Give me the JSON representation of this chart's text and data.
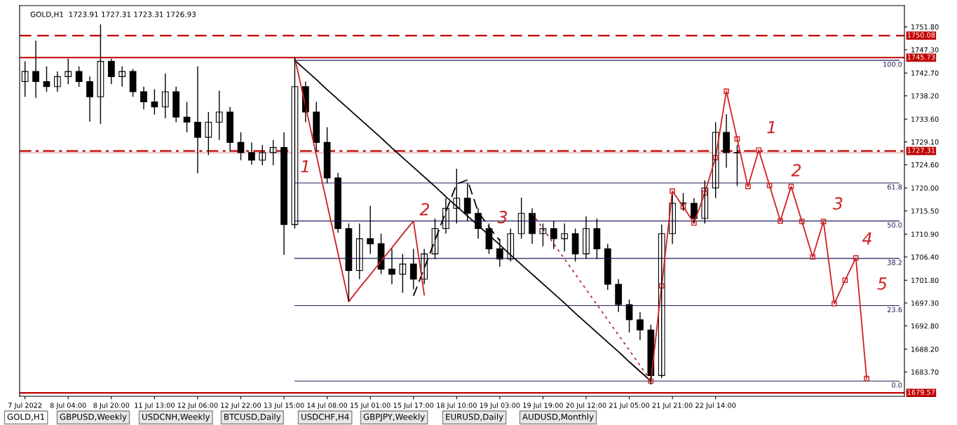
{
  "chart_data": {
    "type": "candlestick",
    "title": "GOLD,H1  1723.91 1727.31 1723.31 1726.93",
    "color": "#000000",
    "categories": [
      "7 Jul 2022",
      null,
      null,
      null,
      "8 Jul 04:00",
      null,
      null,
      null,
      "8 Jul 20:00",
      null,
      null,
      null,
      "11 Jul 13:00",
      null,
      null,
      null,
      "12 Jul 06:00",
      null,
      null,
      null,
      "12 Jul 22:00",
      null,
      null,
      null,
      "13 Jul 15:00",
      null,
      null,
      null,
      "14 Jul 08:00",
      null,
      null,
      null,
      "15 Jul 01:00",
      null,
      null,
      null,
      "15 Jul 17:00",
      null,
      null,
      null,
      "18 Jul 10:00",
      null,
      null,
      null,
      "19 Jul 03:00",
      null,
      null,
      null,
      "19 Jul 19:00",
      null,
      null,
      null,
      "20 Jul 12:00",
      null,
      null,
      null,
      "21 Jul 05:00",
      null,
      null,
      null,
      "21 Jul 21:00",
      null,
      null,
      null,
      "22 Jul 14:00",
      null,
      null,
      null,
      null,
      null,
      null,
      null,
      null,
      null,
      null,
      null,
      null,
      null,
      null,
      null,
      null,
      null
    ],
    "ohlc": [
      [
        1741,
        1745,
        1738,
        1743
      ],
      [
        1743,
        1749.1,
        1737.8,
        1741
      ],
      [
        1741,
        1744,
        1739,
        1740
      ],
      [
        1740,
        1743,
        1739,
        1742
      ],
      [
        1742,
        1745.5,
        1740.5,
        1743
      ],
      [
        1743,
        1744,
        1740,
        1741
      ],
      [
        1741,
        1742,
        1733.1,
        1738
      ],
      [
        1738,
        1752.3,
        1732.6,
        1745
      ],
      [
        1745,
        1745.5,
        1740.5,
        1742
      ],
      [
        1742,
        1744,
        1740,
        1743
      ],
      [
        1743,
        1743.5,
        1738,
        1739
      ],
      [
        1739,
        1740,
        1735.5,
        1737
      ],
      [
        1737,
        1739.5,
        1734.5,
        1736
      ],
      [
        1736,
        1742.6,
        1733.8,
        1739
      ],
      [
        1739,
        1740,
        1733,
        1734
      ],
      [
        1734,
        1737,
        1731,
        1733
      ],
      [
        1733,
        1744,
        1722.9,
        1730
      ],
      [
        1730,
        1735,
        1726.5,
        1733
      ],
      [
        1733,
        1739.2,
        1729.5,
        1735
      ],
      [
        1735,
        1736,
        1727.2,
        1729
      ],
      [
        1729,
        1731,
        1725.5,
        1727
      ],
      [
        1727,
        1729,
        1724.6,
        1725.5
      ],
      [
        1725.5,
        1728.5,
        1724.5,
        1727
      ],
      [
        1727,
        1729.5,
        1724.5,
        1728
      ],
      [
        1728,
        1731,
        1706.8,
        1712.8
      ],
      [
        1712.8,
        1745.9,
        1712,
        1740
      ],
      [
        1740,
        1741,
        1733,
        1735
      ],
      [
        1735,
        1737,
        1727.2,
        1729
      ],
      [
        1729,
        1732,
        1720.9,
        1722
      ],
      [
        1722,
        1723,
        1711.2,
        1712
      ],
      [
        1712,
        1713,
        1697.6,
        1703.7
      ],
      [
        1703.7,
        1713,
        1702,
        1710
      ],
      [
        1710,
        1716.5,
        1707,
        1709
      ],
      [
        1709,
        1711,
        1703,
        1704
      ],
      [
        1704,
        1708,
        1701,
        1703
      ],
      [
        1703,
        1707,
        1699.3,
        1705
      ],
      [
        1705,
        1708,
        1700,
        1702
      ],
      [
        1702,
        1708,
        1701,
        1707
      ],
      [
        1707,
        1714,
        1706,
        1712
      ],
      [
        1712,
        1718,
        1711,
        1716
      ],
      [
        1716,
        1723.8,
        1713,
        1718
      ],
      [
        1718,
        1721,
        1713.5,
        1715
      ],
      [
        1715,
        1716,
        1710,
        1712
      ],
      [
        1712,
        1713,
        1707,
        1708
      ],
      [
        1708,
        1710,
        1704.5,
        1706
      ],
      [
        1706,
        1712,
        1705.5,
        1711
      ],
      [
        1711,
        1718.1,
        1710,
        1715
      ],
      [
        1715,
        1716,
        1709,
        1711
      ],
      [
        1711,
        1713,
        1708.5,
        1712
      ],
      [
        1712,
        1713.5,
        1708,
        1710
      ],
      [
        1710,
        1713,
        1707.5,
        1711
      ],
      [
        1711,
        1712,
        1705.5,
        1707
      ],
      [
        1707,
        1714.4,
        1706,
        1712
      ],
      [
        1712,
        1714,
        1706,
        1708
      ],
      [
        1708,
        1709,
        1699.9,
        1701
      ],
      [
        1701,
        1702,
        1695.5,
        1697
      ],
      [
        1697,
        1698,
        1691.5,
        1694
      ],
      [
        1694,
        1695.5,
        1690,
        1692
      ],
      [
        1692,
        1693,
        1681.2,
        1683
      ],
      [
        1683,
        1712.8,
        1682.5,
        1711
      ],
      [
        1711,
        1718.7,
        1709,
        1717
      ],
      [
        1717,
        1719,
        1715.5,
        1717
      ],
      [
        1717,
        1718,
        1713,
        1714
      ],
      [
        1714,
        1721.5,
        1713,
        1720
      ],
      [
        1720,
        1733,
        1718,
        1731
      ],
      [
        1731,
        1734.6,
        1724,
        1727
      ],
      [
        1727,
        1728.5,
        1720.4,
        1726.93
      ],
      null,
      null,
      null,
      null,
      null,
      null,
      null,
      null,
      null,
      null,
      null,
      null,
      null,
      null,
      null
    ],
    "series": [
      {
        "type": "line",
        "color": "#1f1f5c",
        "line_style": "solid",
        "marker": "none",
        "name": "0.0",
        "values": [
          null,
          null,
          null,
          null,
          null,
          null,
          null,
          null,
          null,
          null,
          null,
          null,
          null,
          null,
          null,
          null,
          null,
          null,
          null,
          null,
          null,
          null,
          null,
          null,
          null,
          1681.9,
          1681.9,
          1681.9,
          1681.9,
          1681.9,
          1681.9,
          1681.9,
          1681.9,
          1681.9,
          1681.9,
          1681.9,
          1681.9,
          1681.9,
          1681.9,
          1681.9,
          1681.9,
          1681.9,
          1681.9,
          1681.9,
          1681.9,
          1681.9,
          1681.9,
          1681.9,
          1681.9,
          1681.9,
          1681.9,
          1681.9,
          1681.9,
          1681.9,
          1681.9,
          1681.9,
          1681.9,
          1681.9,
          1681.9,
          1681.9,
          1681.9,
          1681.9,
          1681.9,
          1681.9,
          1681.9,
          1681.9,
          1681.9,
          1681.9,
          1681.9,
          1681.9,
          1681.9,
          1681.9,
          1681.9,
          1681.9,
          1681.9,
          1681.9,
          1681.9,
          1681.9,
          1681.9,
          1681.9,
          1681.9,
          1681.9
        ]
      },
      {
        "type": "line",
        "color": "#1f1f5c",
        "line_style": "solid",
        "marker": "none",
        "name": "23.6",
        "values": [
          null,
          null,
          null,
          null,
          null,
          null,
          null,
          null,
          null,
          null,
          null,
          null,
          null,
          null,
          null,
          null,
          null,
          null,
          null,
          null,
          null,
          null,
          null,
          null,
          null,
          1696.8,
          1696.8,
          1696.8,
          1696.8,
          1696.8,
          1696.8,
          1696.8,
          1696.8,
          1696.8,
          1696.8,
          1696.8,
          1696.8,
          1696.8,
          1696.8,
          1696.8,
          1696.8,
          1696.8,
          1696.8,
          1696.8,
          1696.8,
          1696.8,
          1696.8,
          1696.8,
          1696.8,
          1696.8,
          1696.8,
          1696.8,
          1696.8,
          1696.8,
          1696.8,
          1696.8,
          1696.8,
          1696.8,
          1696.8,
          1696.8,
          1696.8,
          1696.8,
          1696.8,
          1696.8,
          1696.8,
          1696.8,
          1696.8,
          1696.8,
          1696.8,
          1696.8,
          1696.8,
          1696.8,
          1696.8,
          1696.8,
          1696.8,
          1696.8,
          1696.8,
          1696.8,
          1696.8,
          1696.8,
          1696.8,
          1696.8
        ]
      },
      {
        "type": "line",
        "color": "#1f1f5c",
        "line_style": "solid",
        "marker": "none",
        "name": "38.2",
        "values": [
          null,
          null,
          null,
          null,
          null,
          null,
          null,
          null,
          null,
          null,
          null,
          null,
          null,
          null,
          null,
          null,
          null,
          null,
          null,
          null,
          null,
          null,
          null,
          null,
          null,
          1706.1,
          1706.1,
          1706.1,
          1706.1,
          1706.1,
          1706.1,
          1706.1,
          1706.1,
          1706.1,
          1706.1,
          1706.1,
          1706.1,
          1706.1,
          1706.1,
          1706.1,
          1706.1,
          1706.1,
          1706.1,
          1706.1,
          1706.1,
          1706.1,
          1706.1,
          1706.1,
          1706.1,
          1706.1,
          1706.1,
          1706.1,
          1706.1,
          1706.1,
          1706.1,
          1706.1,
          1706.1,
          1706.1,
          1706.1,
          1706.1,
          1706.1,
          1706.1,
          1706.1,
          1706.1,
          1706.1,
          1706.1,
          1706.1,
          1706.1,
          1706.1,
          1706.1,
          1706.1,
          1706.1,
          1706.1,
          1706.1,
          1706.1,
          1706.1,
          1706.1,
          1706.1,
          1706.1,
          1706.1,
          1706.1,
          1706.1
        ]
      },
      {
        "type": "line",
        "color": "#1f1f5c",
        "line_style": "solid",
        "marker": "none",
        "name": "50.0",
        "values": [
          null,
          null,
          null,
          null,
          null,
          null,
          null,
          null,
          null,
          null,
          null,
          null,
          null,
          null,
          null,
          null,
          null,
          null,
          null,
          null,
          null,
          null,
          null,
          null,
          null,
          1713.5,
          1713.5,
          1713.5,
          1713.5,
          1713.5,
          1713.5,
          1713.5,
          1713.5,
          1713.5,
          1713.5,
          1713.5,
          1713.5,
          1713.5,
          1713.5,
          1713.5,
          1713.5,
          1713.5,
          1713.5,
          1713.5,
          1713.5,
          1713.5,
          1713.5,
          1713.5,
          1713.5,
          1713.5,
          1713.5,
          1713.5,
          1713.5,
          1713.5,
          1713.5,
          1713.5,
          1713.5,
          1713.5,
          1713.5,
          1713.5,
          1713.5,
          1713.5,
          1713.5,
          1713.5,
          1713.5,
          1713.5,
          1713.5,
          1713.5,
          1713.5,
          1713.5,
          1713.5,
          1713.5,
          1713.5,
          1713.5,
          1713.5,
          1713.5,
          1713.5,
          1713.5,
          1713.5,
          1713.5,
          1713.5,
          1713.5
        ]
      },
      {
        "type": "line",
        "color": "#1f1f5c",
        "line_style": "solid",
        "marker": "none",
        "name": "61.8",
        "values": [
          null,
          null,
          null,
          null,
          null,
          null,
          null,
          null,
          null,
          null,
          null,
          null,
          null,
          null,
          null,
          null,
          null,
          null,
          null,
          null,
          null,
          null,
          null,
          null,
          null,
          1721.0,
          1721.0,
          1721.0,
          1721.0,
          1721.0,
          1721.0,
          1721.0,
          1721.0,
          1721.0,
          1721.0,
          1721.0,
          1721.0,
          1721.0,
          1721.0,
          1721.0,
          1721.0,
          1721.0,
          1721.0,
          1721.0,
          1721.0,
          1721.0,
          1721.0,
          1721.0,
          1721.0,
          1721.0,
          1721.0,
          1721.0,
          1721.0,
          1721.0,
          1721.0,
          1721.0,
          1721.0,
          1721.0,
          1721.0,
          1721.0,
          1721.0,
          1721.0,
          1721.0,
          1721.0,
          1721.0,
          1721.0,
          1721.0,
          1721.0,
          1721.0,
          1721.0,
          1721.0,
          1721.0,
          1721.0,
          1721.0,
          1721.0,
          1721.0,
          1721.0,
          1721.0,
          1721.0,
          1721.0,
          1721.0,
          1721.0
        ]
      },
      {
        "type": "line",
        "color": "#1f1f5c",
        "line_style": "solid",
        "marker": "none",
        "name": "100.0",
        "values": [
          null,
          null,
          null,
          null,
          null,
          null,
          null,
          null,
          null,
          null,
          null,
          null,
          null,
          null,
          null,
          null,
          null,
          null,
          null,
          null,
          null,
          null,
          null,
          null,
          null,
          1745.2,
          1745.2,
          1745.2,
          1745.2,
          1745.2,
          1745.2,
          1745.2,
          1745.2,
          1745.2,
          1745.2,
          1745.2,
          1745.2,
          1745.2,
          1745.2,
          1745.2,
          1745.2,
          1745.2,
          1745.2,
          1745.2,
          1745.2,
          1745.2,
          1745.2,
          1745.2,
          1745.2,
          1745.2,
          1745.2,
          1745.2,
          1745.2,
          1745.2,
          1745.2,
          1745.2,
          1745.2,
          1745.2,
          1745.2,
          1745.2,
          1745.2,
          1745.2,
          1745.2,
          1745.2,
          1745.2,
          1745.2,
          1745.2,
          1745.2,
          1745.2,
          1745.2,
          1745.2,
          1745.2,
          1745.2,
          1745.2,
          1745.2,
          1745.2,
          1745.2,
          1745.2,
          1745.2,
          1745.2,
          1745.2,
          1745.2
        ]
      },
      {
        "type": "line",
        "color": "#000000",
        "line_style": "solid",
        "marker": "none",
        "values": [
          null,
          null,
          null,
          null,
          null,
          null,
          null,
          null,
          null,
          null,
          null,
          null,
          null,
          null,
          null,
          null,
          null,
          null,
          null,
          null,
          null,
          null,
          null,
          null,
          null,
          1745.2,
          1743.3,
          1741.4,
          1739.4,
          1737.5,
          1735.6,
          1733.7,
          1731.8,
          1729.9,
          1727.9,
          1726.0,
          1724.1,
          1722.2,
          1720.3,
          1718.3,
          1716.4,
          1714.5,
          1712.6,
          1710.7,
          1708.8,
          1706.8,
          1704.9,
          1703.0,
          1701.1,
          1699.2,
          1697.3,
          1695.3,
          1693.4,
          1691.5,
          1689.6,
          1687.7,
          1685.7,
          1683.8,
          1681.9,
          null,
          null,
          null,
          null,
          null,
          null,
          null,
          null,
          null,
          null,
          null,
          null,
          null,
          null,
          null,
          null,
          null,
          null,
          null,
          null,
          null,
          null,
          null
        ]
      },
      {
        "type": "line",
        "color": "#000000",
        "line_style": "dashed",
        "marker": "none",
        "values": [
          null,
          null,
          null,
          null,
          null,
          null,
          null,
          null,
          null,
          null,
          null,
          null,
          null,
          null,
          null,
          null,
          null,
          null,
          null,
          null,
          null,
          null,
          null,
          null,
          null,
          null,
          null,
          null,
          null,
          null,
          null,
          null,
          null,
          null,
          null,
          null,
          1698.7,
          1704.2,
          1709.7,
          1715.3,
          1720.8,
          1721.6,
          1715.3,
          1712.3,
          1709.6,
          null,
          null,
          null,
          null,
          null,
          null,
          null,
          null,
          null,
          null,
          null,
          null,
          null,
          null,
          null,
          null,
          null,
          null,
          null,
          null,
          null,
          null,
          null,
          null,
          null,
          null,
          null,
          null,
          null,
          null,
          null,
          null,
          null,
          null,
          null,
          null,
          null
        ]
      },
      {
        "type": "line",
        "color": "#b03030",
        "line_style": "dotted",
        "marker": "none",
        "values": [
          null,
          null,
          null,
          null,
          null,
          null,
          null,
          null,
          null,
          null,
          null,
          null,
          null,
          null,
          null,
          null,
          null,
          null,
          null,
          null,
          null,
          null,
          null,
          null,
          null,
          null,
          null,
          null,
          null,
          null,
          null,
          null,
          null,
          null,
          null,
          null,
          null,
          null,
          null,
          null,
          null,
          null,
          null,
          null,
          null,
          null,
          null,
          1715.0,
          1712.0,
          1709.0,
          1706.0,
          1703.0,
          1700.0,
          1697.0,
          1694.0,
          1691.0,
          1688.0,
          1685.0,
          1681.9,
          null,
          null,
          null,
          null,
          null,
          null,
          null,
          null,
          null,
          null,
          null,
          null,
          null,
          null,
          null,
          null,
          null,
          null,
          null,
          null,
          null,
          null,
          null
        ]
      },
      {
        "type": "line",
        "color": "#d02020",
        "line_style": "solid",
        "marker": "none",
        "values": [
          null,
          null,
          null,
          null,
          null,
          null,
          null,
          null,
          null,
          null,
          null,
          null,
          null,
          null,
          null,
          null,
          null,
          null,
          null,
          null,
          null,
          null,
          null,
          null,
          null,
          1745.7,
          1736.1,
          1726.5,
          1716.8,
          1707.2,
          1697.6,
          1700.3,
          1702.9,
          1705.6,
          1708.2,
          1710.9,
          1713.5,
          1698.9,
          null,
          null,
          null,
          null,
          null,
          null,
          null,
          null,
          null,
          null,
          null,
          null,
          null,
          null,
          null,
          null,
          null,
          null,
          null,
          null,
          null,
          null,
          null,
          null,
          null,
          null,
          null,
          null,
          null,
          null,
          null,
          null,
          null,
          null,
          null,
          null,
          null,
          null,
          null,
          null,
          null,
          null,
          null,
          null
        ]
      },
      {
        "type": "line",
        "color": "#d02020",
        "line_style": "solid",
        "marker": "square",
        "values": [
          null,
          null,
          null,
          null,
          null,
          null,
          null,
          null,
          null,
          null,
          null,
          null,
          null,
          null,
          null,
          null,
          null,
          null,
          null,
          null,
          null,
          null,
          null,
          null,
          null,
          null,
          null,
          null,
          null,
          null,
          null,
          null,
          null,
          null,
          null,
          null,
          null,
          null,
          null,
          null,
          null,
          null,
          null,
          null,
          null,
          null,
          null,
          null,
          null,
          null,
          null,
          null,
          null,
          null,
          null,
          null,
          null,
          null,
          1681.9,
          1700.7,
          1719.4,
          1716.3,
          1713.1,
          1719.0,
          1726.0,
          1739.1,
          1729.7,
          1720.3,
          1727.5,
          1720.5,
          1713.5,
          1720.3,
          1713.4,
          1706.4,
          1713.4,
          1697.2,
          1701.8,
          1706.2,
          1682.4,
          null,
          null,
          null
        ]
      }
    ],
    "ref_lines": [
      {
        "axis": "y",
        "value": 1750.08,
        "label": "1750.08",
        "color": "#c00000",
        "line_style": "dashed"
      },
      {
        "axis": "y",
        "value": 1745.73,
        "label": "1745.73",
        "color": "#c00000",
        "line_style": "solid"
      },
      {
        "axis": "y",
        "value": 1727.31,
        "label": "1727.31",
        "color": "#c00000",
        "line_style": "dashdot"
      },
      {
        "axis": "y",
        "value": 1726.93,
        "color": "#e0a0a0",
        "line_style": "solid"
      },
      {
        "axis": "y",
        "value": 1679.57,
        "label": "1679.57",
        "color": "#c00000",
        "line_style": "solid"
      }
    ],
    "annotations": [
      "1",
      "2",
      "3",
      "1",
      "2",
      "3",
      "4",
      "5",
      "GOLD,H1",
      "GBPUSD,Weekly",
      "USDCNH,Weekly",
      "BTCUSD,Daily",
      "USDCHF,H4",
      "GBPJPY,Weekly",
      "EURUSD,Daily",
      "AUDUSD,Monthly"
    ],
    "ylim": [
      1678.9,
      1756.0
    ],
    "yticks": [
      {
        "value": 1683.7,
        "label": "1683.70"
      },
      {
        "value": 1688.2,
        "label": "1688.20"
      },
      {
        "value": 1692.8,
        "label": "1692.80"
      },
      {
        "value": 1697.3,
        "label": "1697.30"
      },
      {
        "value": 1701.8,
        "label": "1701.80"
      },
      {
        "value": 1706.4,
        "label": "1706.40"
      },
      {
        "value": 1710.9,
        "label": "1710.90"
      },
      {
        "value": 1715.5,
        "label": "1715.50"
      },
      {
        "value": 1720.0,
        "label": "1720.00"
      },
      {
        "value": 1724.6,
        "label": "1724.60"
      },
      {
        "value": 1729.1,
        "label": "1729.10"
      },
      {
        "value": 1733.6,
        "label": "1733.60"
      },
      {
        "value": 1738.2,
        "label": "1738.20"
      },
      {
        "value": 1742.7,
        "label": "1742.70"
      },
      {
        "value": 1747.3,
        "label": "1747.30"
      },
      {
        "value": 1751.8,
        "label": "1751.80"
      }
    ]
  }
}
